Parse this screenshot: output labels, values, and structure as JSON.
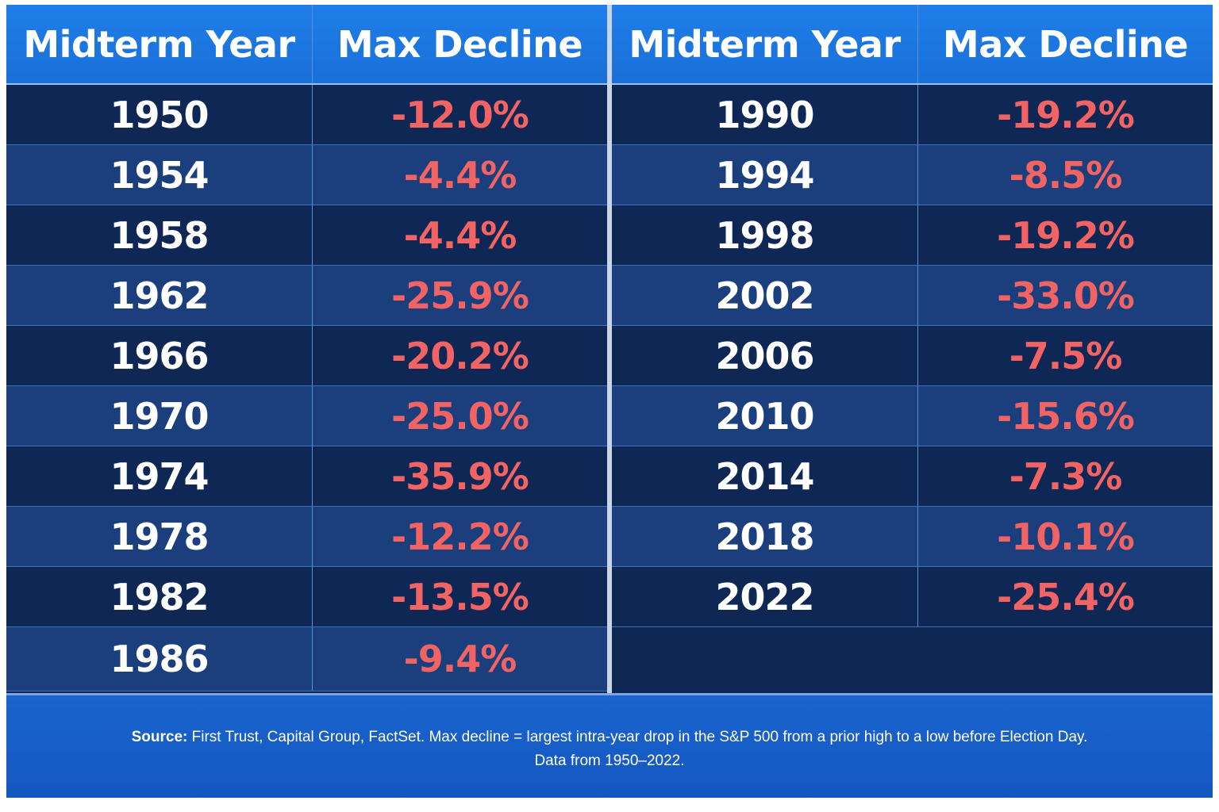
{
  "chart_data": {
    "type": "table",
    "columns": [
      "Midterm Year",
      "Max Decline"
    ],
    "left_rows": [
      {
        "year": "1950",
        "decline": "-12.0%"
      },
      {
        "year": "1954",
        "decline": "-4.4%"
      },
      {
        "year": "1958",
        "decline": "-4.4%"
      },
      {
        "year": "1962",
        "decline": "-25.9%"
      },
      {
        "year": "1966",
        "decline": "-20.2%"
      },
      {
        "year": "1970",
        "decline": "-25.0%"
      },
      {
        "year": "1974",
        "decline": "-35.9%"
      },
      {
        "year": "1978",
        "decline": "-12.2%"
      },
      {
        "year": "1982",
        "decline": "-13.5%"
      },
      {
        "year": "1986",
        "decline": "-9.4%"
      }
    ],
    "right_rows": [
      {
        "year": "1990",
        "decline": "-19.2%"
      },
      {
        "year": "1994",
        "decline": "-8.5%"
      },
      {
        "year": "1998",
        "decline": "-19.2%"
      },
      {
        "year": "2002",
        "decline": "-33.0%"
      },
      {
        "year": "2006",
        "decline": "-7.5%"
      },
      {
        "year": "2010",
        "decline": "-15.6%"
      },
      {
        "year": "2014",
        "decline": "-7.3%"
      },
      {
        "year": "2018",
        "decline": "-10.1%"
      },
      {
        "year": "2022",
        "decline": "-25.4%"
      }
    ]
  },
  "footer": {
    "source_label": "Source:",
    "source_text": " First Trust, Capital Group, FactSet.  Max decline = largest intra-year drop in the S&P 500 from a prior high to a low before Election Day.",
    "source_line2": "Data from 1950–2022."
  },
  "colors": {
    "header_bg": "#1f7ee8",
    "row_dark": "#0f2754",
    "row_light": "#1a3f7c",
    "decline_text": "#f26464",
    "year_text": "#ffffff",
    "footer_bg": "#1a64cf"
  }
}
